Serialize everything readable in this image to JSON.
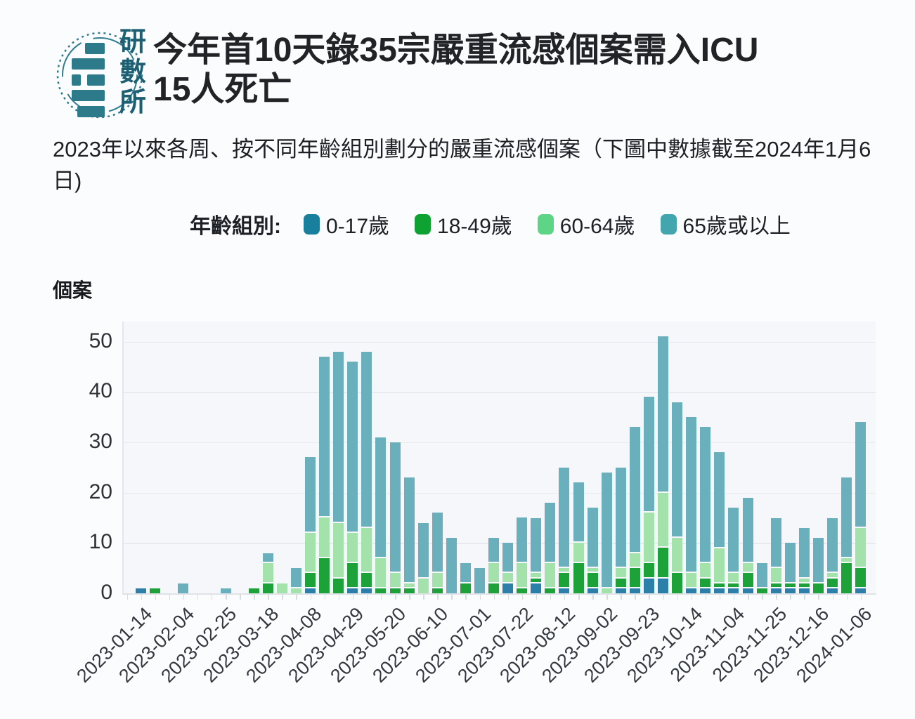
{
  "header": {
    "logo": {
      "chars": [
        "研",
        "數",
        "所"
      ],
      "color": "#1d5f73",
      "accent": "#2d7a8b"
    },
    "title_line1": "今年首10天錄35宗嚴重流感個案需入ICU",
    "title_line2": "15人死亡"
  },
  "subtitle": "2023年以來各周、按不同年齡組別劃分的嚴重流感個案（下圖中數據截至2024年1月6日)",
  "legend": {
    "label": "年齡組別:",
    "items": [
      {
        "label": "0-17歲",
        "color": "#187f9d"
      },
      {
        "label": "18-49歲",
        "color": "#0da232"
      },
      {
        "label": "60-64歲",
        "color": "#5ed586"
      },
      {
        "label": "65歲或以上",
        "color": "#43a6ae"
      }
    ]
  },
  "chart_data": {
    "type": "bar",
    "stacked": true,
    "ylabel": "個案",
    "ylim": [
      0,
      55
    ],
    "yticks": [
      0,
      10,
      20,
      30,
      40,
      50
    ],
    "grid": true,
    "legend_position": "top",
    "categories": [
      "2023-01-07",
      "2023-01-14",
      "2023-01-21",
      "2023-01-28",
      "2023-02-04",
      "2023-02-11",
      "2023-02-18",
      "2023-02-25",
      "2023-03-04",
      "2023-03-11",
      "2023-03-18",
      "2023-03-25",
      "2023-04-01",
      "2023-04-08",
      "2023-04-15",
      "2023-04-22",
      "2023-04-29",
      "2023-05-06",
      "2023-05-13",
      "2023-05-20",
      "2023-05-27",
      "2023-06-03",
      "2023-06-10",
      "2023-06-17",
      "2023-06-24",
      "2023-07-01",
      "2023-07-08",
      "2023-07-15",
      "2023-07-22",
      "2023-07-29",
      "2023-08-05",
      "2023-08-12",
      "2023-08-19",
      "2023-08-26",
      "2023-09-02",
      "2023-09-09",
      "2023-09-16",
      "2023-09-23",
      "2023-09-30",
      "2023-10-07",
      "2023-10-14",
      "2023-10-21",
      "2023-10-28",
      "2023-11-04",
      "2023-11-11",
      "2023-11-18",
      "2023-11-25",
      "2023-12-02",
      "2023-12-09",
      "2023-12-16",
      "2023-12-23",
      "2023-12-30",
      "2024-01-06"
    ],
    "xtick_labels": [
      "2023-01-14",
      "2023-02-04",
      "2023-02-25",
      "2023-03-18",
      "2023-04-08",
      "2023-04-29",
      "2023-05-20",
      "2023-06-10",
      "2023-07-01",
      "2023-07-22",
      "2023-08-12",
      "2023-09-02",
      "2023-09-23",
      "2023-10-14",
      "2023-11-04",
      "2023-11-25",
      "2023-12-16",
      "2024-01-06"
    ],
    "series": [
      {
        "name": "0-17歲",
        "bar_color": "#2b7fa8",
        "values": [
          0,
          1,
          0,
          0,
          0,
          0,
          0,
          0,
          0,
          0,
          0,
          0,
          0,
          1,
          0,
          0,
          1,
          1,
          0,
          0,
          0,
          0,
          0,
          0,
          0,
          0,
          0,
          2,
          0,
          2,
          0,
          1,
          0,
          1,
          0,
          1,
          1,
          3,
          3,
          0,
          1,
          1,
          1,
          1,
          1,
          0,
          1,
          1,
          1,
          0,
          1,
          0,
          1
        ]
      },
      {
        "name": "18-49歲",
        "bar_color": "#1da23a",
        "values": [
          0,
          0,
          1,
          0,
          0,
          0,
          0,
          0,
          0,
          1,
          2,
          0,
          0,
          3,
          7,
          3,
          5,
          3,
          1,
          1,
          1,
          0,
          1,
          0,
          2,
          0,
          2,
          0,
          1,
          1,
          1,
          3,
          6,
          3,
          0,
          2,
          4,
          3,
          6,
          4,
          0,
          2,
          1,
          1,
          3,
          1,
          1,
          1,
          1,
          2,
          2,
          6,
          4
        ]
      },
      {
        "name": "60-64歲",
        "bar_color": "#a3e3ab",
        "values": [
          0,
          0,
          0,
          0,
          0,
          0,
          0,
          0,
          0,
          0,
          4,
          2,
          1,
          8,
          8,
          11,
          6,
          9,
          6,
          3,
          1,
          3,
          3,
          0,
          0,
          0,
          4,
          2,
          5,
          1,
          5,
          1,
          4,
          1,
          1,
          2,
          3,
          10,
          11,
          7,
          3,
          3,
          7,
          2,
          2,
          0,
          3,
          0,
          1,
          0,
          1,
          1,
          8
        ]
      },
      {
        "name": "65歲或以上",
        "bar_color": "#69b0bc",
        "values": [
          0,
          0,
          0,
          0,
          2,
          0,
          0,
          1,
          0,
          0,
          2,
          0,
          4,
          15,
          32,
          34,
          34,
          35,
          24,
          26,
          21,
          11,
          12,
          11,
          4,
          5,
          5,
          6,
          9,
          11,
          12,
          20,
          12,
          12,
          23,
          20,
          25,
          23,
          31,
          27,
          31,
          27,
          19,
          13,
          13,
          5,
          10,
          8,
          10,
          9,
          11,
          16,
          21
        ]
      }
    ],
    "totals_note_max": 51
  }
}
